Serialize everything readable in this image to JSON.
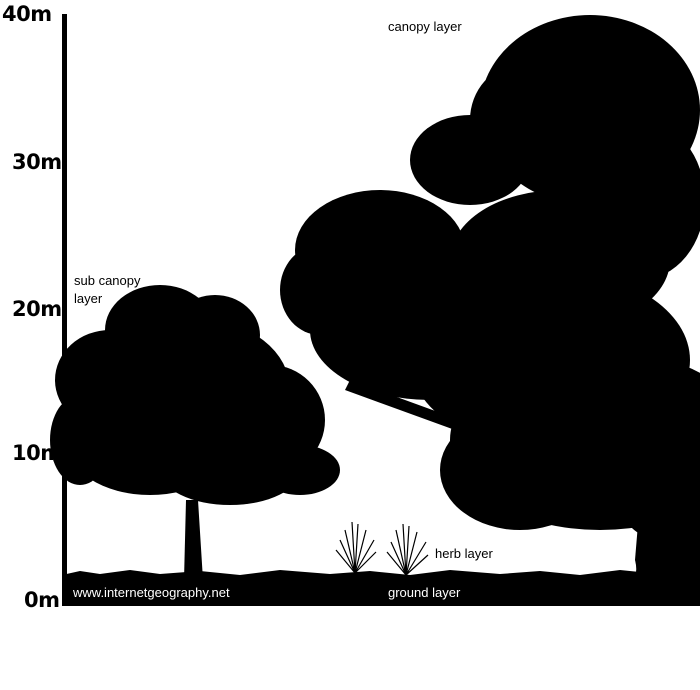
{
  "scale": {
    "unit": "m",
    "ticks": [
      {
        "value": 40,
        "label": "40m"
      },
      {
        "value": 30,
        "label": "30m"
      },
      {
        "value": 20,
        "label": "20m"
      },
      {
        "value": 10,
        "label": "10m"
      },
      {
        "value": 0,
        "label": "0m"
      }
    ]
  },
  "labels": {
    "canopy": "canopy layer",
    "sub_canopy_line1": "sub canopy",
    "sub_canopy_line2": "layer",
    "herb": "herb layer",
    "ground": "ground layer",
    "website": "www.internetgeography.net"
  },
  "colors": {
    "silhouette": "#000000",
    "background": "#ffffff",
    "ground_text": "#ffffff"
  }
}
